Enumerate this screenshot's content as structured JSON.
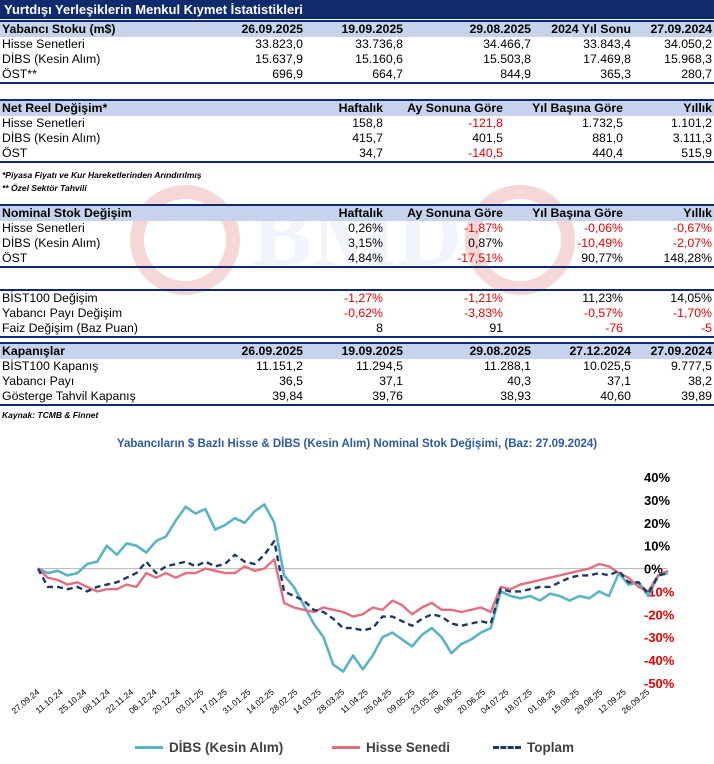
{
  "title": "Yurtdışı Yerleşiklerin Menkul Kıymet İstatistikleri",
  "stock": {
    "headers": [
      "Yabancı Stoku (m$)",
      "26.09.2025",
      "19.09.2025",
      "29.08.2025",
      "2024 Yıl Sonu",
      "27.09.2024"
    ],
    "rows": [
      [
        "Hisse Senetleri",
        "33.823,0",
        "33.736,8",
        "34.466,7",
        "33.843,4",
        "34.050,2"
      ],
      [
        "DİBS (Kesin Alım)",
        "15.637,9",
        "15.160,6",
        "15.503,8",
        "17.469,8",
        "15.968,3"
      ],
      [
        "ÖST**",
        "696,9",
        "664,7",
        "844,9",
        "365,3",
        "280,7"
      ]
    ]
  },
  "net_real": {
    "headers": [
      "Net Reel Değişim*",
      "Haftalık",
      "Ay Sonuna Göre",
      "Yıl Başına Göre",
      "Yıllık"
    ],
    "rows": [
      [
        "Hisse Senetleri",
        "158,8",
        "-121,8",
        "1.732,5",
        "1.101,2"
      ],
      [
        "DİBS (Kesin Alım)",
        "415,7",
        "401,5",
        "881,0",
        "3.111,3"
      ],
      [
        "ÖST",
        "34,7",
        "-140,5",
        "440,4",
        "515,9"
      ]
    ]
  },
  "notes": [
    "*Piyasa Fiyatı ve Kur Hareketlerinden Arındırılmış",
    "** Özel Sektör Tahvili"
  ],
  "nominal": {
    "headers": [
      "Nominal Stok Değişim",
      "Haftalık",
      "Ay Sonuna Göre",
      "Yıl Başına Göre",
      "Yıllık"
    ],
    "rows": [
      [
        "Hisse Senetleri",
        "0,26%",
        "-1,87%",
        "-0,06%",
        "-0,67%"
      ],
      [
        "DİBS (Kesin Alım)",
        "3,15%",
        "0,87%",
        "-10,49%",
        "-2,07%"
      ],
      [
        "ÖST",
        "4,84%",
        "-17,51%",
        "90,77%",
        "148,28%"
      ]
    ]
  },
  "bist": {
    "rows": [
      [
        "BİST100 Değişim",
        "-1,27%",
        "-1,21%",
        "11,23%",
        "14,05%"
      ],
      [
        "Yabancı Payı Değişim",
        "-0,62%",
        "-3,83%",
        "-0,57%",
        "-1,70%"
      ],
      [
        "Faiz Değişim (Baz Puan)",
        "8",
        "91",
        "-76",
        "-5"
      ]
    ]
  },
  "closing": {
    "headers": [
      "Kapanışlar",
      "26.09.2025",
      "19.09.2025",
      "29.08.2025",
      "27.12.2024",
      "27.09.2024"
    ],
    "rows": [
      [
        "BİST100 Kapanış",
        "11.151,2",
        "11.294,5",
        "11.288,1",
        "10.025,5",
        "9.777,5"
      ],
      [
        "Yabancı Payı",
        "36,5",
        "37,1",
        "40,3",
        "37,1",
        "38,2"
      ],
      [
        "Gösterge Tahvil Kapanış",
        "39,84",
        "39,76",
        "38,93",
        "40,60",
        "39,89"
      ]
    ]
  },
  "source": "Kaynak: TCMB & Finnet",
  "colors": {
    "header_bg": "#102a6e",
    "subheader_bg": "#c7d3ec",
    "negative": "#e60000",
    "dibs": "#5ab4c5",
    "hisse": "#e26f7f",
    "toplam": "#1f3864"
  },
  "chart_data": {
    "type": "line",
    "title": "Yabancıların $ Bazlı Hisse & DİBS (Kesin Alım) Nominal Stok Değişimi, (Baz: 27.09.2024)",
    "tick_labels": [
      "27.09.24",
      "11.10.24",
      "25.10.24",
      "08.11.24",
      "22.11.24",
      "06.12.24",
      "20.12.24",
      "03.01.25",
      "17.01.25",
      "31.01.25",
      "14.02.25",
      "28.02.25",
      "14.03.25",
      "28.03.25",
      "11.04.25",
      "25.04.25",
      "09.05.25",
      "23.05.25",
      "06.06.25",
      "20.06.25",
      "04.07.25",
      "18.07.25",
      "01.08.25",
      "15.08.25",
      "29.08.25",
      "12.09.25",
      "26.09.25"
    ],
    "y_ticks": [
      40,
      30,
      20,
      10,
      0,
      -10,
      -20,
      -30,
      -40,
      -50
    ],
    "y_tick_labels": [
      "40%",
      "30%",
      "20%",
      "10%",
      "0%",
      "-10%",
      "-20%",
      "-30%",
      "-40%",
      "-50%"
    ],
    "ylim": [
      -50,
      40
    ],
    "grid": false,
    "legend": "bottom",
    "series": [
      {
        "name": "DİBS (Kesin Alım)",
        "values": [
          0,
          -2,
          -1,
          -3,
          -2,
          2,
          3,
          10,
          6,
          11,
          10,
          7,
          12,
          14,
          21,
          27,
          24,
          26,
          17,
          19,
          22,
          20,
          25,
          28,
          20,
          -3,
          -8,
          -16,
          -24,
          -30,
          -42,
          -45,
          -38,
          -44,
          -38,
          -30,
          -28,
          -31,
          -34,
          -29,
          -26,
          -30,
          -37,
          -33,
          -31,
          -28,
          -26,
          -10,
          -12,
          -13,
          -12,
          -14,
          -11,
          -12,
          -14,
          -12,
          -13,
          -10,
          -12,
          -2,
          -7,
          -6,
          -12,
          -3,
          -2
        ]
      },
      {
        "name": "Hisse Senedi",
        "values": [
          0,
          -4,
          -5,
          -7,
          -6,
          -8,
          -10,
          -9,
          -9,
          -7,
          -8,
          -2,
          -4,
          -2,
          -4,
          -2,
          -2,
          0,
          -1,
          -2,
          -2,
          1,
          -1,
          0,
          4,
          -15,
          -17,
          -18,
          -19,
          -17,
          -18,
          -19,
          -21,
          -20,
          -17,
          -18,
          -14,
          -16,
          -20,
          -17,
          -15,
          -18,
          -18,
          -19,
          -18,
          -17,
          -19,
          -8,
          -9,
          -7,
          -6,
          -5,
          -4,
          -3,
          -2,
          -1,
          0,
          2,
          1,
          -2,
          -4,
          -8,
          -10,
          -3,
          -1
        ]
      },
      {
        "name": "Toplam",
        "values": [
          0,
          -8,
          -8,
          -9,
          -8,
          -10,
          -8,
          -7,
          -6,
          -4,
          -2,
          3,
          -2,
          1,
          2,
          3,
          1,
          3,
          1,
          2,
          6,
          3,
          2,
          6,
          12,
          -10,
          -12,
          -14,
          -18,
          -19,
          -22,
          -26,
          -26,
          -27,
          -26,
          -21,
          -21,
          -23,
          -25,
          -22,
          -20,
          -21,
          -24,
          -25,
          -24,
          -23,
          -24,
          -9,
          -10,
          -10,
          -9,
          -8,
          -8,
          -6,
          -4,
          -3,
          -3,
          -2,
          -3,
          -1,
          -6,
          -6,
          -11,
          -3,
          -2
        ]
      }
    ]
  }
}
